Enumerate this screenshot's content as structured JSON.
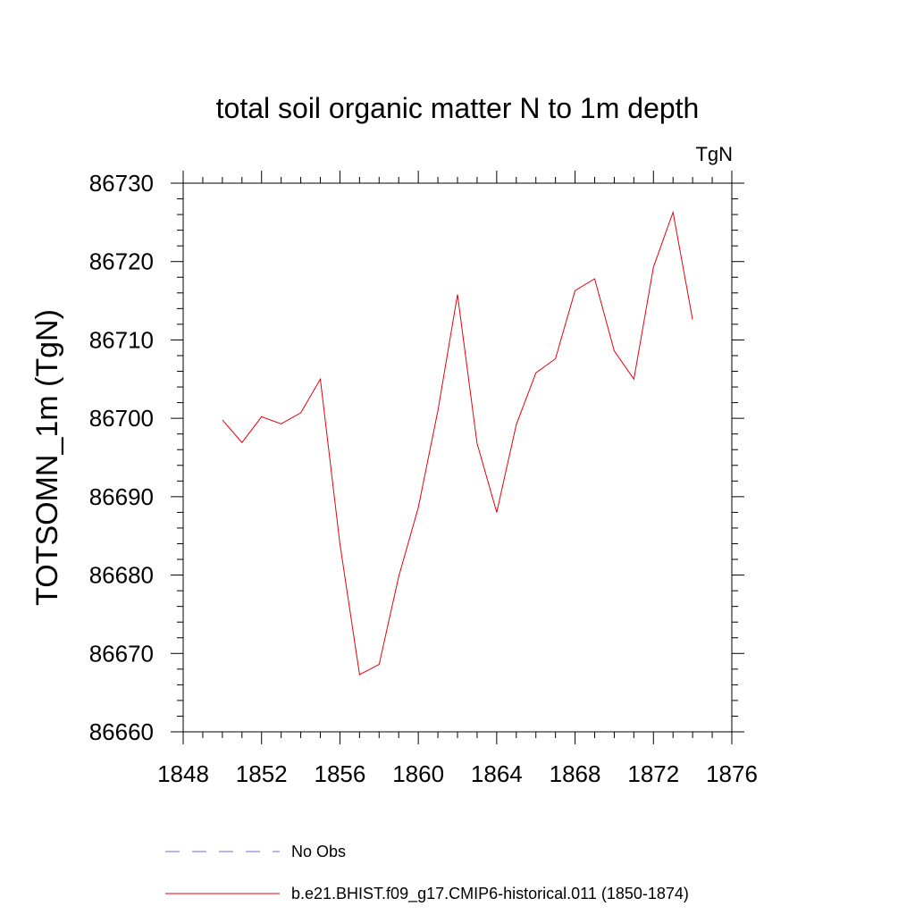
{
  "chart_data": {
    "type": "line",
    "title": "total soil organic matter N to 1m depth",
    "units_label": "TgN",
    "xlabel": "",
    "ylabel": "TOTSOMN_1m  (TgN)",
    "xlim": [
      1848,
      1876
    ],
    "ylim": [
      86660,
      86730
    ],
    "x_ticks": [
      1848,
      1852,
      1856,
      1860,
      1864,
      1868,
      1872,
      1876
    ],
    "y_ticks": [
      86660,
      86670,
      86680,
      86690,
      86700,
      86710,
      86720,
      86730
    ],
    "grid": false,
    "series": [
      {
        "name": "b.e21.BHIST.f09_g17.CMIP6-historical.011 (1850-1874)",
        "color": "#e8000b",
        "dash": "solid",
        "x": [
          1850,
          1851,
          1852,
          1853,
          1854,
          1855,
          1856,
          1857,
          1858,
          1859,
          1860,
          1861,
          1862,
          1863,
          1864,
          1865,
          1866,
          1867,
          1868,
          1869,
          1870,
          1871,
          1872,
          1873,
          1874
        ],
        "y": [
          86699.8,
          86696.9,
          86700.2,
          86699.3,
          86700.7,
          86705.0,
          86684.0,
          86667.3,
          86668.6,
          86679.8,
          86688.6,
          86701.0,
          86715.8,
          86696.8,
          86688.0,
          86699.2,
          86705.8,
          86707.6,
          86716.3,
          86717.8,
          86708.6,
          86705.0,
          86719.3,
          86726.3,
          86712.6
        ]
      }
    ],
    "legend": {
      "placement": "bottom",
      "entries": [
        {
          "label": "No Obs",
          "color": "#6c6cc8",
          "dash": "dashed"
        },
        {
          "label": "b.e21.BHIST.f09_g17.CMIP6-historical.011 (1850-1874)",
          "color": "#e8000b",
          "dash": "solid"
        }
      ]
    }
  }
}
